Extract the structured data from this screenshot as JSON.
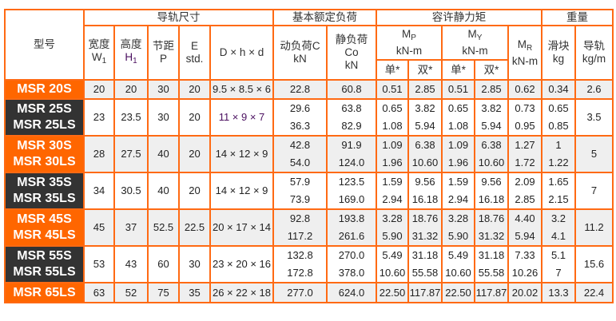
{
  "header": {
    "model": "型号",
    "rail_dims": "导轨尺寸",
    "basic_load": "基本额定负荷",
    "static_moment": "容许静力矩",
    "weight": "重量",
    "width": "宽度",
    "width_sym": "W",
    "width_sub": "1",
    "height": "高度",
    "height_sym": "H",
    "height_sub": "1",
    "pitch": "节距",
    "pitch_sym": "P",
    "e": "E",
    "e_std": "std.",
    "dhd": "D × h × d",
    "dyn": "动负荷C",
    "dyn_unit": "kN",
    "stat": "静负荷",
    "stat_sym": "Co",
    "stat_unit": "kN",
    "mp": "M",
    "mp_sub": "P",
    "mp_unit": "kN-m",
    "my": "M",
    "my_sub": "Y",
    "my_unit": "kN-m",
    "mr": "M",
    "mr_sub": "R",
    "mr_unit": "kN-m",
    "block": "滑块",
    "block_unit": "kg",
    "rail": "导轨",
    "rail_unit": "kg/m",
    "single": "单*",
    "double": "双*"
  },
  "colors": {
    "border": "#ff6a13",
    "model_orange": "#ff6600",
    "model_dark": "#333333",
    "row_gray": "#efefef"
  },
  "rows": [
    {
      "model": [
        "MSR 20S"
      ],
      "style": "or",
      "w": "20",
      "h": "20",
      "p": "30",
      "e": "20",
      "dhd": "9.5 × 8.5 × 6",
      "c": [
        "22.8"
      ],
      "co": [
        "60.8"
      ],
      "mps": [
        "0.51"
      ],
      "mpd": [
        "2.85"
      ],
      "mys": [
        "0.51"
      ],
      "myd": [
        "2.85"
      ],
      "mr": [
        "0.62"
      ],
      "block": [
        "0.34"
      ],
      "rail": "2.6"
    },
    {
      "model": [
        "MSR 25S",
        "MSR 25LS"
      ],
      "style": "dk",
      "w": "23",
      "h": "23.5",
      "p": "30",
      "e": "20",
      "dhd": "11 × 9 × 7",
      "c": [
        "29.6",
        "36.3"
      ],
      "co": [
        "63.8",
        "82.9"
      ],
      "mps": [
        "0.65",
        "1.08"
      ],
      "mpd": [
        "3.82",
        "5.94"
      ],
      "mys": [
        "0.65",
        "1.08"
      ],
      "myd": [
        "3.82",
        "5.94"
      ],
      "mr": [
        "0.73",
        "0.95"
      ],
      "block": [
        "0.65",
        "0.85"
      ],
      "rail": "3.5"
    },
    {
      "model": [
        "MSR 30S",
        "MSR 30LS"
      ],
      "style": "or",
      "w": "28",
      "h": "27.5",
      "p": "40",
      "e": "20",
      "dhd": "14 × 12 × 9",
      "c": [
        "42.8",
        "54.0"
      ],
      "co": [
        "91.9",
        "124.0"
      ],
      "mps": [
        "1.09",
        "1.96"
      ],
      "mpd": [
        "6.38",
        "10.60"
      ],
      "mys": [
        "1.09",
        "1.96"
      ],
      "myd": [
        "6.38",
        "10.60"
      ],
      "mr": [
        "1.27",
        "1.72"
      ],
      "block": [
        "1",
        "1.22"
      ],
      "rail": "5"
    },
    {
      "model": [
        "MSR 35S",
        "MSR 35LS"
      ],
      "style": "dk",
      "w": "34",
      "h": "30.5",
      "p": "40",
      "e": "20",
      "dhd": "14 × 12 × 9",
      "c": [
        "57.9",
        "73.9"
      ],
      "co": [
        "123.5",
        "169.0"
      ],
      "mps": [
        "1.59",
        "2.94"
      ],
      "mpd": [
        "9.56",
        "16.18"
      ],
      "mys": [
        "1.59",
        "2.94"
      ],
      "myd": [
        "9.56",
        "16.18"
      ],
      "mr": [
        "2.09",
        "2.85"
      ],
      "block": [
        "1.65",
        "2.15"
      ],
      "rail": "7"
    },
    {
      "model": [
        "MSR 45S",
        "MSR 45LS"
      ],
      "style": "or",
      "w": "45",
      "h": "37",
      "p": "52.5",
      "e": "22.5",
      "dhd": "20 × 17 × 14",
      "c": [
        "92.8",
        "117.2"
      ],
      "co": [
        "193.8",
        "261.6"
      ],
      "mps": [
        "3.28",
        "5.90"
      ],
      "mpd": [
        "18.76",
        "31.32"
      ],
      "mys": [
        "3.28",
        "5.90"
      ],
      "myd": [
        "18.76",
        "31.32"
      ],
      "mr": [
        "4.40",
        "5.94"
      ],
      "block": [
        "3.2",
        "4.1"
      ],
      "rail": "11.2"
    },
    {
      "model": [
        "MSR 55S",
        "MSR 55LS"
      ],
      "style": "dk",
      "w": "53",
      "h": "43",
      "p": "60",
      "e": "30",
      "dhd": "23 × 20 × 16",
      "c": [
        "132.8",
        "172.8"
      ],
      "co": [
        "270.0",
        "378.0"
      ],
      "mps": [
        "5.49",
        "10.60"
      ],
      "mpd": [
        "31.18",
        "55.58"
      ],
      "mys": [
        "5.49",
        "10.60"
      ],
      "myd": [
        "31.18",
        "55.58"
      ],
      "mr": [
        "7.33",
        "10.26"
      ],
      "block": [
        "5.1",
        "7"
      ],
      "rail": "15.6"
    },
    {
      "model": [
        "MSR 65LS"
      ],
      "style": "or",
      "w": "63",
      "h": "52",
      "p": "75",
      "e": "35",
      "dhd": "26 × 22 × 18",
      "c": [
        "277.0"
      ],
      "co": [
        "624.0"
      ],
      "mps": [
        "22.50"
      ],
      "mpd": [
        "117.87"
      ],
      "mys": [
        "22.50"
      ],
      "myd": [
        "117.87"
      ],
      "mr": [
        "20.02"
      ],
      "block": [
        "13.3"
      ],
      "rail": "22.4"
    }
  ]
}
